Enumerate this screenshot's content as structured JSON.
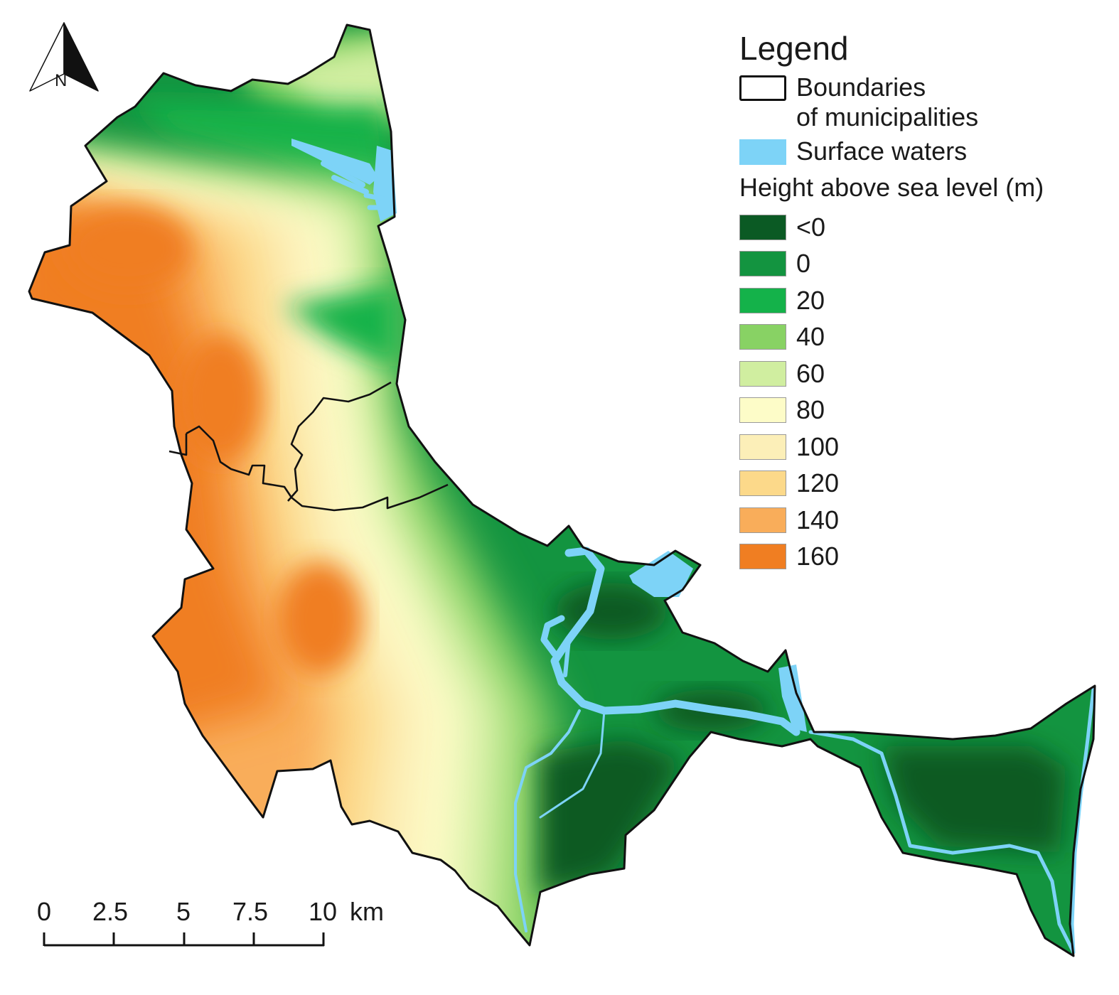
{
  "legend": {
    "title": "Legend",
    "boundary_label_line1": "Boundaries",
    "boundary_label_line2": "of municipalities",
    "water_label": "Surface waters",
    "height_title": "Height above sea level (m)",
    "classes": [
      {
        "label": "<0",
        "color": "#0b5a24"
      },
      {
        "label": "0",
        "color": "#139440"
      },
      {
        "label": "20",
        "color": "#14b24a"
      },
      {
        "label": "40",
        "color": "#88d264"
      },
      {
        "label": "60",
        "color": "#d0eea0"
      },
      {
        "label": "80",
        "color": "#fdfcc8"
      },
      {
        "label": "100",
        "color": "#fcefb8"
      },
      {
        "label": "120",
        "color": "#fcd98a"
      },
      {
        "label": "140",
        "color": "#f9ad5a"
      },
      {
        "label": "160",
        "color": "#f07e22"
      }
    ]
  },
  "colors": {
    "water": "#7dd3f7",
    "boundary": "#111111"
  },
  "north_arrow": {
    "letter": "N"
  },
  "scale_bar": {
    "ticks": [
      "0",
      "2.5",
      "5",
      "7.5",
      "10"
    ],
    "unit": "km"
  }
}
